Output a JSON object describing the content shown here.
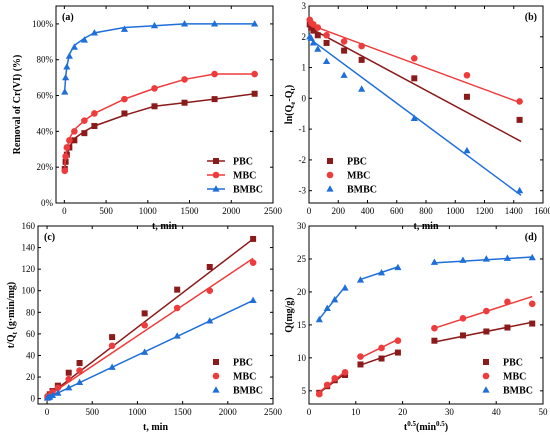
{
  "colors": {
    "PBC": "#8b1a1a",
    "MBC": "#ee3b3b",
    "BMBC": "#1e6fd9"
  },
  "chart_data": [
    {
      "panel": "(a)",
      "type": "line",
      "xlabel": "t, min",
      "ylabel": "Removal of Cr(VI) (%)",
      "xlim": [
        -100,
        2500
      ],
      "ylim": [
        0,
        110
      ],
      "xticks": [
        0,
        500,
        1000,
        1500,
        2000,
        2500
      ],
      "yticks": [
        0,
        20,
        40,
        60,
        80,
        100
      ],
      "ytick_suffix": "%",
      "legend": "bottom-right",
      "series": [
        {
          "name": "PBC",
          "marker": "square",
          "x": [
            5,
            15,
            30,
            60,
            120,
            240,
            360,
            720,
            1080,
            1440,
            1800,
            2280
          ],
          "y": [
            19,
            23,
            27,
            31,
            35,
            39,
            43,
            50,
            54,
            56,
            58,
            61
          ],
          "fit": [
            [
              5,
              18
            ],
            [
              15,
              23
            ],
            [
              30,
              27
            ],
            [
              60,
              31
            ],
            [
              120,
              36
            ],
            [
              240,
              40
            ],
            [
              360,
              43
            ],
            [
              720,
              49
            ],
            [
              1080,
              54
            ],
            [
              1440,
              56
            ],
            [
              1800,
              58
            ],
            [
              2280,
              61
            ]
          ]
        },
        {
          "name": "MBC",
          "marker": "circle",
          "x": [
            5,
            15,
            30,
            60,
            120,
            240,
            360,
            720,
            1080,
            1440,
            1800,
            2280
          ],
          "y": [
            18,
            26,
            31,
            35,
            40,
            46,
            50,
            58,
            64,
            69,
            72,
            72
          ],
          "fit": [
            [
              5,
              20
            ],
            [
              15,
              26
            ],
            [
              30,
              30
            ],
            [
              60,
              36
            ],
            [
              120,
              41
            ],
            [
              240,
              46
            ],
            [
              360,
              50
            ],
            [
              720,
              58
            ],
            [
              1080,
              64
            ],
            [
              1440,
              69
            ],
            [
              1800,
              72
            ],
            [
              2280,
              72
            ]
          ]
        },
        {
          "name": "BMBC",
          "marker": "triangle",
          "x": [
            5,
            15,
            30,
            60,
            120,
            240,
            360,
            720,
            1080,
            1440,
            1800,
            2280
          ],
          "y": [
            62,
            70,
            76,
            82,
            87,
            91,
            95,
            97,
            99,
            100,
            100,
            100
          ],
          "fit": [
            [
              5,
              63
            ],
            [
              15,
              70
            ],
            [
              30,
              76
            ],
            [
              60,
              83
            ],
            [
              120,
              88
            ],
            [
              240,
              92
            ],
            [
              360,
              95
            ],
            [
              720,
              98
            ],
            [
              1080,
              99
            ],
            [
              1440,
              100
            ],
            [
              1800,
              100
            ],
            [
              2280,
              100
            ]
          ]
        }
      ]
    },
    {
      "panel": "(b)",
      "type": "scatter",
      "xlabel": "t, min",
      "ylabel": "ln(Qe-Qt)",
      "xlim": [
        0,
        1600
      ],
      "ylim": [
        -3.4,
        3
      ],
      "xticks": [
        0,
        200,
        400,
        600,
        800,
        1000,
        1200,
        1400,
        1600
      ],
      "yticks": [
        -3,
        -2,
        -1,
        0,
        1,
        2,
        3
      ],
      "legend": "bottom-left",
      "series": [
        {
          "name": "PBC",
          "marker": "square",
          "x": [
            5,
            15,
            30,
            60,
            120,
            240,
            360,
            720,
            1080,
            1440
          ],
          "y": [
            2.4,
            2.3,
            2.2,
            2.05,
            1.8,
            1.55,
            1.25,
            0.65,
            0.05,
            -0.7
          ],
          "fit": [
            [
              0,
              2.3
            ],
            [
              1450,
              -1.4
            ]
          ]
        },
        {
          "name": "MBC",
          "marker": "circle",
          "x": [
            5,
            15,
            30,
            60,
            120,
            240,
            360,
            720,
            1080,
            1440
          ],
          "y": [
            2.55,
            2.45,
            2.4,
            2.3,
            2.05,
            1.85,
            1.7,
            1.3,
            0.75,
            -0.1
          ],
          "fit": [
            [
              0,
              2.4
            ],
            [
              1450,
              -0.15
            ]
          ]
        },
        {
          "name": "BMBC",
          "marker": "triangle",
          "x": [
            5,
            15,
            30,
            60,
            120,
            240,
            360,
            720,
            1080,
            1440
          ],
          "y": [
            2.0,
            1.95,
            1.8,
            1.6,
            1.2,
            0.75,
            0.3,
            -0.65,
            -1.7,
            -3.0
          ],
          "fit": [
            [
              0,
              1.95
            ],
            [
              1450,
              -3.15
            ]
          ]
        }
      ]
    },
    {
      "panel": "(c)",
      "type": "scatter",
      "xlabel": "t, min",
      "ylabel": "t/Qt (g·min/mg)",
      "xlim": [
        -100,
        2500
      ],
      "ylim": [
        -5,
        160
      ],
      "xticks": [
        0,
        500,
        1000,
        1500,
        2000,
        2500
      ],
      "yticks": [
        0,
        20,
        40,
        60,
        80,
        100,
        120,
        140,
        160
      ],
      "legend": "bottom-right",
      "series": [
        {
          "name": "PBC",
          "marker": "square",
          "x": [
            5,
            15,
            30,
            60,
            120,
            240,
            360,
            720,
            1080,
            1440,
            1800,
            2280
          ],
          "y": [
            1,
            2,
            4,
            7,
            12,
            24,
            33,
            57,
            79,
            101,
            122,
            148
          ],
          "fit": [
            [
              0,
              2
            ],
            [
              2280,
              148
            ]
          ]
        },
        {
          "name": "MBC",
          "marker": "circle",
          "x": [
            5,
            15,
            30,
            60,
            120,
            240,
            360,
            720,
            1080,
            1440,
            1800,
            2280
          ],
          "y": [
            1,
            2,
            3,
            6,
            10,
            18,
            26,
            49,
            68,
            84,
            100,
            126
          ],
          "fit": [
            [
              0,
              2
            ],
            [
              2280,
              130
            ]
          ]
        },
        {
          "name": "BMBC",
          "marker": "triangle",
          "x": [
            5,
            15,
            30,
            60,
            120,
            240,
            360,
            720,
            1080,
            1440,
            1800,
            2280
          ],
          "y": [
            0.5,
            1,
            1.5,
            3,
            5,
            10,
            15,
            29,
            43,
            58,
            72,
            91
          ],
          "fit": [
            [
              0,
              0.5
            ],
            [
              2280,
              91
            ]
          ]
        }
      ]
    },
    {
      "panel": "(d)",
      "type": "scatter",
      "xlabel": "t0.5(min0.5)",
      "ylabel": "Q(mg/g)",
      "xlim": [
        0,
        50
      ],
      "ylim": [
        3,
        30
      ],
      "xticks": [
        0,
        10,
        20,
        30,
        40,
        50
      ],
      "yticks": [
        5,
        10,
        15,
        20,
        25,
        30
      ],
      "legend": "bottom-right",
      "series": [
        {
          "name": "PBC",
          "marker": "square",
          "x": [
            2.2,
            3.9,
            5.5,
            7.7,
            11,
            15.5,
            19,
            26.8,
            32.9,
            37.9,
            42.4,
            47.7
          ],
          "y": [
            4.7,
            5.7,
            6.6,
            7.4,
            9.0,
            9.9,
            10.8,
            12.6,
            13.4,
            14.0,
            14.6,
            15.2
          ],
          "fit": [
            [
              [
                2.2,
                4.7
              ],
              [
                7.7,
                7.6
              ]
            ],
            [
              [
                11,
                8.9
              ],
              [
                19,
                10.9
              ]
            ],
            [
              [
                26.8,
                12.4
              ],
              [
                47.7,
                15.4
              ]
            ]
          ]
        },
        {
          "name": "MBC",
          "marker": "circle",
          "x": [
            2.2,
            3.9,
            5.5,
            7.7,
            11,
            15.5,
            19,
            26.8,
            32.9,
            37.9,
            42.4,
            47.7
          ],
          "y": [
            4.5,
            5.9,
            6.9,
            7.8,
            10.2,
            11.5,
            12.6,
            14.5,
            16.0,
            17.1,
            18.5,
            18.2
          ],
          "fit": [
            [
              [
                2.2,
                4.8
              ],
              [
                7.7,
                7.9
              ]
            ],
            [
              [
                11,
                10.0
              ],
              [
                19,
                12.8
              ]
            ],
            [
              [
                26.8,
                14.5
              ],
              [
                47.7,
                19.3
              ]
            ]
          ]
        },
        {
          "name": "BMBC",
          "marker": "triangle",
          "x": [
            2.2,
            3.9,
            5.5,
            7.7,
            11,
            15.5,
            19,
            26.8,
            32.9,
            37.9,
            42.4,
            47.7
          ],
          "y": [
            15.8,
            17.5,
            18.8,
            20.6,
            21.8,
            22.9,
            23.7,
            24.5,
            24.8,
            25.0,
            25.1,
            25.2
          ],
          "fit": [
            [
              [
                2.2,
                15.9
              ],
              [
                7.7,
                20.8
              ]
            ],
            [
              [
                11,
                21.9
              ],
              [
                19,
                23.8
              ]
            ],
            [
              [
                26.8,
                24.4
              ],
              [
                47.7,
                25.3
              ]
            ]
          ]
        }
      ]
    }
  ]
}
